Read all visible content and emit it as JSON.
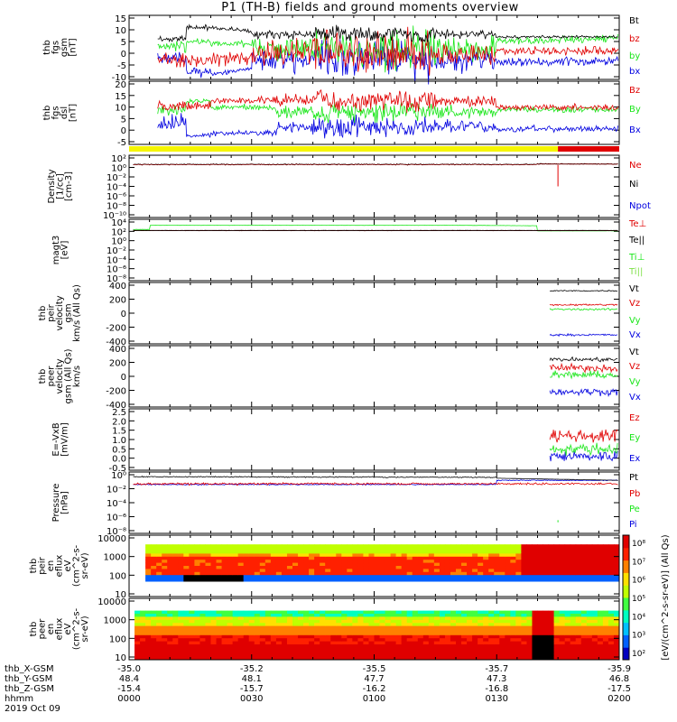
{
  "title": "P1 (TH-B) fields and ground moments overview",
  "colors": {
    "black": "#000000",
    "red": "#e00000",
    "green": "#19e619",
    "blue": "#0000e0",
    "yellow": "#f5f500",
    "lightgreen": "#7fe04a"
  },
  "status_bar": [
    {
      "from": "0000",
      "to": "0145",
      "color": "yellow"
    },
    {
      "from": "0145",
      "to": "0200",
      "color": "red"
    }
  ],
  "chart_data": [
    {
      "type": "line",
      "ylabel": [
        "thb",
        "fgs",
        "gsm",
        "[nT]"
      ],
      "ylim": [
        -10,
        15
      ],
      "yticks": [
        "15",
        "10",
        "5",
        "0",
        "-5",
        "-10"
      ],
      "series": [
        {
          "name": "Bt",
          "color": "black"
        },
        {
          "name": "bz",
          "color": "red"
        },
        {
          "name": "by",
          "color": "green"
        },
        {
          "name": "bx",
          "color": "blue"
        }
      ]
    },
    {
      "type": "line",
      "ylabel": [
        "thb",
        "fgs",
        "dsl",
        "[nT]"
      ],
      "ylim": [
        -7,
        20
      ],
      "yticks": [
        "20",
        "15",
        "10",
        "5",
        "0",
        "-5"
      ],
      "series": [
        {
          "name": "Bz",
          "color": "red"
        },
        {
          "name": "By",
          "color": "green"
        },
        {
          "name": "Bx",
          "color": "blue"
        }
      ]
    },
    {
      "type": "line",
      "log": true,
      "ylabel": [
        "Density",
        "[1/cc]",
        "[cm-3]"
      ],
      "yticks": [
        "10²",
        "10⁰",
        "10⁻²",
        "10⁻⁴",
        "10⁻⁶",
        "10⁻⁸",
        "10⁻¹⁰"
      ],
      "series": [
        {
          "name": "Ne",
          "color": "red"
        },
        {
          "name": "Ni",
          "color": "black"
        },
        {
          "name": "Npot",
          "color": "blue"
        }
      ]
    },
    {
      "type": "line",
      "log": true,
      "ylabel": [
        "magt3",
        "[eV]"
      ],
      "yticks": [
        "10⁴",
        "10²",
        "10⁰",
        "10⁻²",
        "10⁻⁴",
        "10⁻⁶",
        "10⁻⁸"
      ],
      "series": [
        {
          "name": "Te⊥",
          "color": "red"
        },
        {
          "name": "Te||",
          "color": "black"
        },
        {
          "name": "Ti⊥",
          "color": "green"
        },
        {
          "name": "Ti||",
          "color": "lightgreen"
        }
      ]
    },
    {
      "type": "line",
      "ylabel": [
        "thb",
        "peir",
        "velocity",
        "gsm",
        "km/s (All Qs)"
      ],
      "ylim": [
        -400,
        400
      ],
      "yticks": [
        "400",
        "200",
        "0",
        "-200",
        "-400"
      ],
      "series": [
        {
          "name": "Vt",
          "color": "black"
        },
        {
          "name": "Vz",
          "color": "red"
        },
        {
          "name": "Vy",
          "color": "green"
        },
        {
          "name": "Vx",
          "color": "blue"
        }
      ]
    },
    {
      "type": "line",
      "ylabel": [
        "thb",
        "peer",
        "velocity",
        "gsm (All Qs)",
        "km/s"
      ],
      "ylim": [
        -400,
        400
      ],
      "yticks": [
        "400",
        "200",
        "0",
        "-200",
        "-400"
      ],
      "series": [
        {
          "name": "Vt",
          "color": "black"
        },
        {
          "name": "Vz",
          "color": "red"
        },
        {
          "name": "Vy",
          "color": "green"
        },
        {
          "name": "Vx",
          "color": "blue"
        }
      ]
    },
    {
      "type": "line",
      "ylabel": [
        "E=-VxB",
        "[mV/m]"
      ],
      "ylim": [
        -0.5,
        2.5
      ],
      "yticks": [
        "2.5",
        "2.0",
        "1.5",
        "1.0",
        "0.5",
        "0.0",
        "-0.5"
      ],
      "series": [
        {
          "name": "Ez",
          "color": "red"
        },
        {
          "name": "Ey",
          "color": "green"
        },
        {
          "name": "Ex",
          "color": "blue"
        }
      ]
    },
    {
      "type": "line",
      "log": true,
      "ylabel": [
        "Pressure",
        "[nPa]"
      ],
      "yticks": [
        "10⁰",
        "10⁻²",
        "10⁻⁴",
        "10⁻⁶",
        "10⁻⁸"
      ],
      "series": [
        {
          "name": "Pt",
          "color": "black"
        },
        {
          "name": "Pb",
          "color": "red"
        },
        {
          "name": "Pe",
          "color": "green"
        },
        {
          "name": "Pi",
          "color": "blue"
        }
      ]
    },
    {
      "type": "heatmap",
      "log": true,
      "ylabel": [
        "thb",
        "peir",
        "en",
        "eflux",
        "eV",
        "(cm^2-s-",
        "sr-eV)"
      ],
      "yticks": [
        "10000",
        "1000",
        "100",
        "10"
      ]
    },
    {
      "type": "heatmap",
      "log": true,
      "ylabel": [
        "thb",
        "peer",
        "en",
        "eflux",
        "eV",
        "(cm^2-s-",
        "sr-eV)"
      ],
      "yticks": [
        "10000",
        "1000",
        "100",
        "10"
      ]
    }
  ],
  "colorbar": {
    "label": "[eV/(cm^2-s-sr-eV)] (All Qs)",
    "ticks": [
      "10⁸",
      "10⁷",
      "10⁶",
      "10⁵",
      "10⁴",
      "10³",
      "10²"
    ]
  },
  "x_axis": {
    "rows": [
      {
        "label": "thb_X-GSM",
        "values": [
          "-35.0",
          "-35.2",
          "-35.5",
          "-35.7",
          "-35.9"
        ]
      },
      {
        "label": "thb_Y-GSM",
        "values": [
          "48.4",
          "48.1",
          "47.7",
          "47.3",
          "46.8"
        ]
      },
      {
        "label": "thb_Z-GSM",
        "values": [
          "-15.4",
          "-15.7",
          "-16.2",
          "-16.8",
          "-17.5"
        ]
      },
      {
        "label": "hhmm",
        "values": [
          "0000",
          "0030",
          "0100",
          "0130",
          "0200"
        ]
      }
    ],
    "date": "2019 Oct 09"
  }
}
